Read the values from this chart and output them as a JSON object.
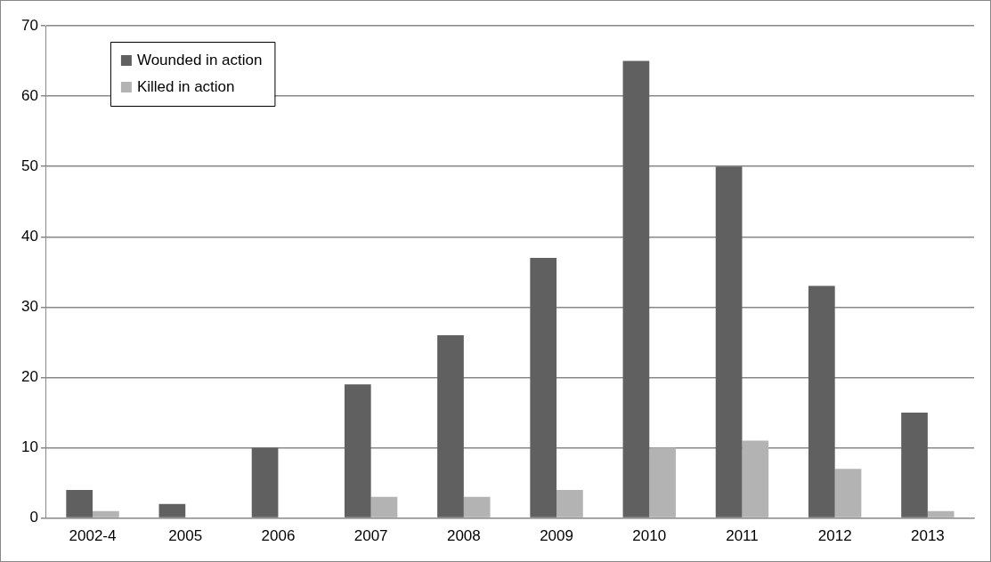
{
  "chart_data": {
    "type": "bar",
    "categories": [
      "2002-4",
      "2005",
      "2006",
      "2007",
      "2008",
      "2009",
      "2010",
      "2011",
      "2012",
      "2013"
    ],
    "series": [
      {
        "name": "Wounded in action",
        "color": "#606060",
        "values": [
          4,
          2,
          10,
          19,
          26,
          37,
          65,
          50,
          33,
          15
        ]
      },
      {
        "name": "Killed in action",
        "color": "#b3b3b3",
        "values": [
          1,
          0,
          0,
          3,
          3,
          4,
          10,
          11,
          7,
          1
        ]
      }
    ],
    "ylim": [
      0,
      70
    ],
    "yticks": [
      0,
      10,
      20,
      30,
      40,
      50,
      60,
      70
    ],
    "grid": "y",
    "legend": "top left"
  }
}
